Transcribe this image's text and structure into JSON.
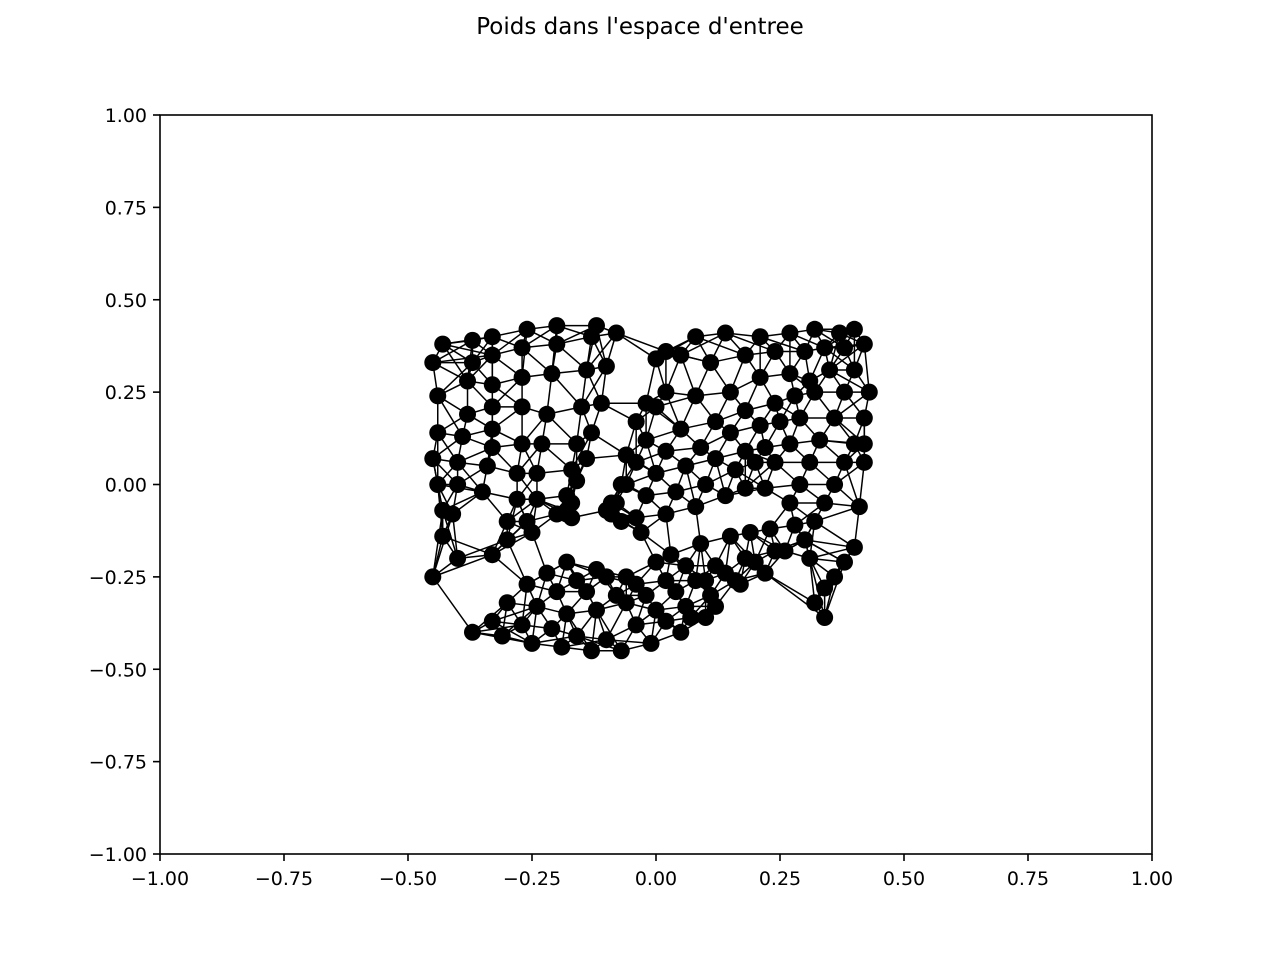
{
  "chart_data": {
    "type": "scatter",
    "title": "Poids dans l'espace d'entree",
    "xlabel": "",
    "ylabel": "",
    "xlim": [
      -1.0,
      1.0
    ],
    "ylim": [
      -1.0,
      1.0
    ],
    "grid": false,
    "legend": "none",
    "marker_color": "#000000",
    "line_color": "#000000",
    "xticks": [
      -1.0,
      -0.75,
      -0.5,
      -0.25,
      0.0,
      0.25,
      0.5,
      0.75,
      1.0
    ],
    "yticks": [
      -1.0,
      -0.75,
      -0.5,
      -0.25,
      0.0,
      0.25,
      0.5,
      0.75,
      1.0
    ],
    "xtick_labels": [
      "−1.00",
      "−0.75",
      "−0.50",
      "−0.25",
      "0.00",
      "0.25",
      "0.50",
      "0.75",
      "1.00"
    ],
    "ytick_labels": [
      "−1.00",
      "−0.75",
      "−0.50",
      "−0.25",
      "0.00",
      "0.25",
      "0.50",
      "0.75",
      "1.00"
    ],
    "series": [
      {
        "x": [
          -0.43,
          -0.45,
          -0.44,
          -0.44,
          -0.45,
          -0.44,
          -0.43,
          -0.43,
          -0.45,
          -0.37,
          -0.37,
          -0.38,
          -0.38,
          -0.39,
          -0.4,
          -0.4,
          -0.41,
          -0.4,
          -0.33,
          -0.33,
          -0.33,
          -0.33,
          -0.33,
          -0.33,
          -0.34,
          -0.35,
          -0.33,
          -0.26,
          -0.27,
          -0.27,
          -0.27,
          -0.27,
          -0.28,
          -0.28,
          -0.3,
          -0.3,
          -0.2,
          -0.2,
          -0.21,
          -0.22,
          -0.23,
          -0.24,
          -0.24,
          -0.26,
          -0.25,
          -0.12,
          -0.13,
          -0.14,
          -0.15,
          -0.16,
          -0.17,
          -0.18,
          -0.18,
          -0.2,
          -0.08,
          -0.1,
          -0.11,
          -0.13,
          -0.14,
          -0.16,
          -0.17,
          -0.18,
          -0.17,
          0.02,
          0.0,
          -0.02,
          -0.04,
          -0.06,
          -0.07,
          -0.09,
          -0.1,
          -0.09,
          0.08,
          0.05,
          0.02,
          0.0,
          -0.02,
          -0.04,
          -0.06,
          -0.08,
          -0.07,
          0.14,
          0.11,
          0.08,
          0.05,
          0.02,
          0.0,
          -0.02,
          -0.04,
          -0.03,
          0.21,
          0.18,
          0.15,
          0.12,
          0.09,
          0.06,
          0.04,
          0.02,
          0.03,
          0.27,
          0.24,
          0.21,
          0.18,
          0.15,
          0.12,
          0.1,
          0.08,
          0.09,
          0.32,
          0.3,
          0.27,
          0.24,
          0.21,
          0.18,
          0.16,
          0.14,
          0.15,
          0.37,
          0.34,
          0.31,
          0.28,
          0.25,
          0.22,
          0.2,
          0.18,
          0.19,
          0.4,
          0.38,
          0.35,
          0.32,
          0.29,
          0.27,
          0.24,
          0.22,
          0.23,
          0.42,
          0.4,
          0.38,
          0.36,
          0.33,
          0.31,
          0.29,
          0.27,
          0.28,
          0.43,
          0.42,
          0.4,
          0.38,
          0.36,
          0.34,
          0.32,
          0.3,
          0.31,
          0.42,
          0.42,
          0.41,
          0.4,
          0.38,
          0.36,
          0.34,
          0.32,
          0.34,
          -0.37,
          -0.31,
          -0.25,
          -0.19,
          -0.13,
          -0.07,
          -0.01,
          0.05,
          0.1,
          -0.33,
          -0.27,
          -0.21,
          -0.16,
          -0.1,
          -0.04,
          0.02,
          0.07,
          0.12,
          -0.3,
          -0.24,
          -0.18,
          -0.12,
          -0.06,
          0.0,
          0.06,
          0.11,
          0.17,
          -0.26,
          -0.2,
          -0.14,
          -0.08,
          -0.02,
          0.04,
          0.1,
          0.16,
          0.22,
          -0.22,
          -0.16,
          -0.1,
          -0.04,
          0.02,
          0.08,
          0.14,
          0.2,
          0.26,
          -0.18,
          -0.12,
          -0.06,
          0.0,
          0.06,
          0.12,
          0.18,
          0.24,
          0.3
        ],
        "y": [
          0.38,
          0.33,
          0.24,
          0.14,
          0.07,
          0.0,
          -0.07,
          -0.14,
          -0.25,
          0.39,
          0.33,
          0.28,
          0.19,
          0.13,
          0.06,
          0.0,
          -0.08,
          -0.2,
          0.4,
          0.35,
          0.27,
          0.21,
          0.15,
          0.1,
          0.05,
          -0.02,
          -0.19,
          0.42,
          0.37,
          0.29,
          0.21,
          0.11,
          0.03,
          -0.04,
          -0.1,
          -0.15,
          0.43,
          0.38,
          0.3,
          0.19,
          0.11,
          0.03,
          -0.04,
          -0.1,
          -0.13,
          0.43,
          0.4,
          0.31,
          0.21,
          0.11,
          0.04,
          -0.03,
          -0.07,
          -0.08,
          0.41,
          0.32,
          0.22,
          0.14,
          0.07,
          0.01,
          -0.05,
          -0.08,
          -0.09,
          0.36,
          0.34,
          0.22,
          0.17,
          0.08,
          0.0,
          -0.05,
          -0.07,
          -0.08,
          0.4,
          0.35,
          0.25,
          0.21,
          0.12,
          0.06,
          0.0,
          -0.05,
          -0.1,
          0.41,
          0.33,
          0.24,
          0.15,
          0.09,
          0.03,
          -0.03,
          -0.09,
          -0.13,
          0.4,
          0.35,
          0.25,
          0.17,
          0.1,
          0.05,
          -0.02,
          -0.08,
          -0.19,
          0.41,
          0.36,
          0.29,
          0.2,
          0.14,
          0.07,
          0.0,
          -0.06,
          -0.16,
          0.42,
          0.36,
          0.3,
          0.22,
          0.16,
          0.09,
          0.04,
          -0.03,
          -0.14,
          0.41,
          0.37,
          0.28,
          0.24,
          0.17,
          0.1,
          0.06,
          -0.01,
          -0.13,
          0.42,
          0.37,
          0.31,
          0.25,
          0.18,
          0.11,
          0.06,
          -0.01,
          -0.12,
          0.38,
          0.31,
          0.25,
          0.18,
          0.12,
          0.06,
          0.0,
          -0.05,
          -0.11,
          0.25,
          0.18,
          0.11,
          0.06,
          0.0,
          -0.05,
          -0.1,
          -0.15,
          -0.2,
          0.11,
          0.06,
          -0.06,
          -0.17,
          -0.21,
          -0.25,
          -0.28,
          -0.32,
          -0.36,
          -0.4,
          -0.41,
          -0.43,
          -0.44,
          -0.45,
          -0.45,
          -0.43,
          -0.4,
          -0.36,
          -0.37,
          -0.38,
          -0.39,
          -0.41,
          -0.42,
          -0.38,
          -0.37,
          -0.36,
          -0.33,
          -0.32,
          -0.33,
          -0.35,
          -0.34,
          -0.32,
          -0.34,
          -0.33,
          -0.3,
          -0.27,
          -0.27,
          -0.29,
          -0.29,
          -0.3,
          -0.3,
          -0.29,
          -0.26,
          -0.26,
          -0.24,
          -0.24,
          -0.26,
          -0.25,
          -0.27,
          -0.26,
          -0.26,
          -0.24,
          -0.21,
          -0.18,
          -0.21,
          -0.23,
          -0.25,
          -0.21,
          -0.22,
          -0.22,
          -0.2,
          -0.18,
          -0.15
        ]
      }
    ]
  }
}
